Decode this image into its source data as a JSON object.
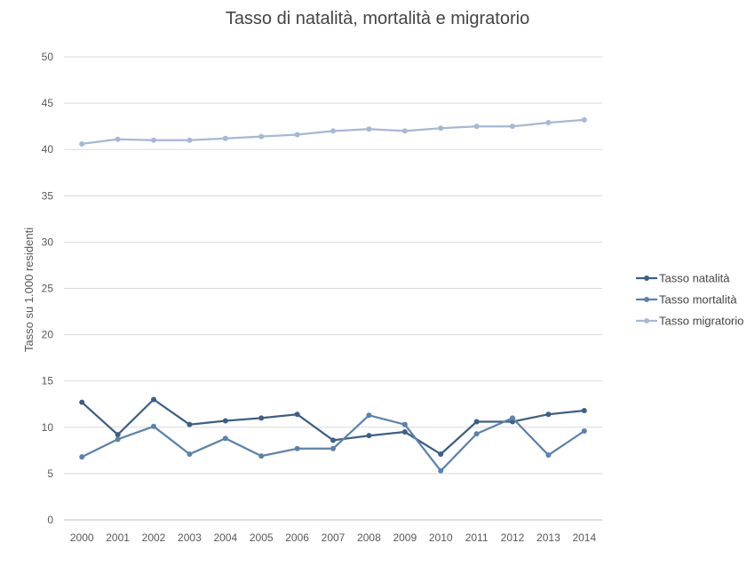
{
  "chart_data": {
    "type": "line",
    "title": "Tasso di natalità, mortalità e migratorio",
    "xlabel": "",
    "ylabel": "Tasso su 1.000 residenti",
    "ylim": [
      0,
      50
    ],
    "yticks": [
      0,
      5,
      10,
      15,
      20,
      25,
      30,
      35,
      40,
      45,
      50
    ],
    "grid": true,
    "legend_position": "right",
    "categories": [
      "2000",
      "2001",
      "2002",
      "2003",
      "2004",
      "2005",
      "2006",
      "2007",
      "2008",
      "2009",
      "2010",
      "2011",
      "2012",
      "2013",
      "2014"
    ],
    "series": [
      {
        "name": "Tasso natalità",
        "color": "#3d5f84",
        "values": [
          12.7,
          9.2,
          13.0,
          10.3,
          10.7,
          11.0,
          11.4,
          8.6,
          9.1,
          9.5,
          7.1,
          10.6,
          10.6,
          11.4,
          11.8
        ]
      },
      {
        "name": "Tasso mortalità",
        "color": "#5b82ad",
        "values": [
          6.8,
          8.7,
          10.1,
          7.1,
          8.8,
          6.9,
          7.7,
          7.7,
          11.3,
          10.3,
          5.3,
          9.3,
          11.0,
          7.0,
          9.6
        ]
      },
      {
        "name": "Tasso migratorio",
        "color": "#a6b8d4",
        "values": [
          40.6,
          41.1,
          41.0,
          41.0,
          41.2,
          41.4,
          41.6,
          42.0,
          42.2,
          42.0,
          42.3,
          42.5,
          42.5,
          42.9,
          43.2
        ]
      }
    ]
  }
}
